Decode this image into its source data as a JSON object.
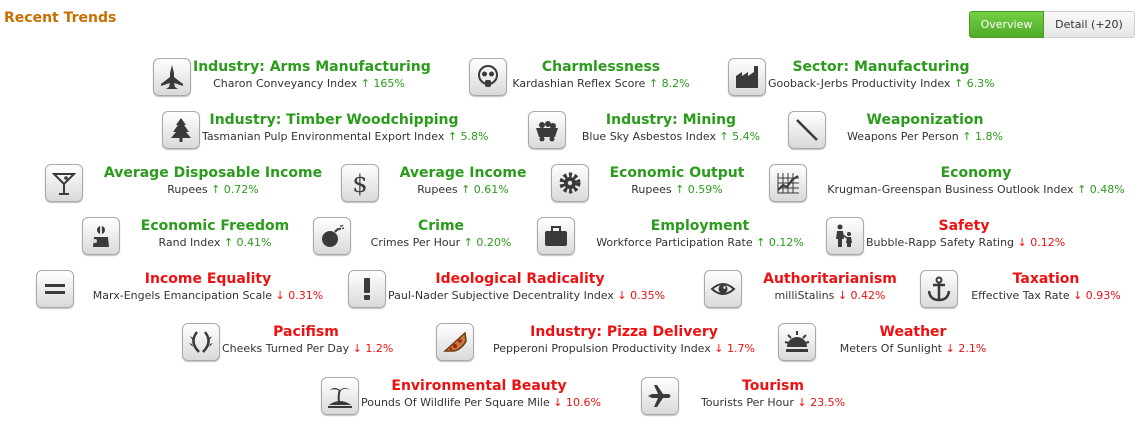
{
  "header": {
    "title": "Recent Trends"
  },
  "tabs": [
    {
      "label": "Overview",
      "active": true
    },
    {
      "label": "Detail (+20)",
      "active": false
    }
  ],
  "colors": {
    "up": "#2a9b1b",
    "down": "#ee1111",
    "title": "#c96f00",
    "active_tab": "#5cb82f"
  },
  "trends": [
    {
      "name": "Industry: Arms Manufacturing",
      "index": "Charon Conveyancy Index",
      "change": "↑ 165%",
      "direction": "up",
      "icon": "jet-icon"
    },
    {
      "name": "Charmlessness",
      "index": "Kardashian Reflex Score",
      "change": "↑ 8.2%",
      "direction": "up",
      "icon": "gas-mask-icon"
    },
    {
      "name": "Sector: Manufacturing",
      "index": "Gooback-Jerbs Productivity Index",
      "change": "↑ 6.3%",
      "direction": "up",
      "icon": "factory-icon"
    },
    {
      "name": "Industry: Timber Woodchipping",
      "index": "Tasmanian Pulp Environmental Export Index",
      "change": "↑ 5.8%",
      "direction": "up",
      "icon": "tree-icon"
    },
    {
      "name": "Industry: Mining",
      "index": "Blue Sky Asbestos Index",
      "change": "↑ 5.4%",
      "direction": "up",
      "icon": "mine-cart-icon"
    },
    {
      "name": "Weaponization",
      "index": "Weapons Per Person",
      "change": "↑ 1.8%",
      "direction": "up",
      "icon": "sword-icon"
    },
    {
      "name": "Average Disposable Income",
      "index": "Rupees",
      "change": "↑ 0.72%",
      "direction": "up",
      "icon": "cocktail-icon"
    },
    {
      "name": "Average Income",
      "index": "Rupees",
      "change": "↑ 0.61%",
      "direction": "up",
      "icon": "dollar-icon"
    },
    {
      "name": "Economic Output",
      "index": "Rupees",
      "change": "↑ 0.59%",
      "direction": "up",
      "icon": "gear-icon"
    },
    {
      "name": "Economy",
      "index": "Krugman-Greenspan Business Outlook Index",
      "change": "↑ 0.48%",
      "direction": "up",
      "icon": "line-chart-icon"
    },
    {
      "name": "Economic Freedom",
      "index": "Rand Index",
      "change": "↑ 0.41%",
      "direction": "up",
      "icon": "market-icon"
    },
    {
      "name": "Crime",
      "index": "Crimes Per Hour",
      "change": "↑ 0.20%",
      "direction": "up",
      "icon": "bomb-icon"
    },
    {
      "name": "Employment",
      "index": "Workforce Participation Rate",
      "change": "↑ 0.12%",
      "direction": "up",
      "icon": "briefcase-icon"
    },
    {
      "name": "Safety",
      "index": "Bubble-Rapp Safety Rating",
      "change": "↓ 0.12%",
      "direction": "down",
      "icon": "family-icon"
    },
    {
      "name": "Income Equality",
      "index": "Marx-Engels Emancipation Scale",
      "change": "↓ 0.31%",
      "direction": "down",
      "icon": "equals-icon"
    },
    {
      "name": "Ideological Radicality",
      "index": "Paul-Nader Subjective Decentrality Index",
      "change": "↓ 0.35%",
      "direction": "down",
      "icon": "exclamation-icon"
    },
    {
      "name": "Authoritarianism",
      "index": "milliStalins",
      "change": "↓ 0.42%",
      "direction": "down",
      "icon": "eye-icon"
    },
    {
      "name": "Taxation",
      "index": "Effective Tax Rate",
      "change": "↓ 0.93%",
      "direction": "down",
      "icon": "anchor-icon"
    },
    {
      "name": "Pacifism",
      "index": "Cheeks Turned Per Day",
      "change": "↓ 1.2%",
      "direction": "down",
      "icon": "laurel-icon"
    },
    {
      "name": "Industry: Pizza Delivery",
      "index": "Pepperoni Propulsion Productivity Index",
      "change": "↓ 1.7%",
      "direction": "down",
      "icon": "pizza-icon"
    },
    {
      "name": "Weather",
      "index": "Meters Of Sunlight",
      "change": "↓ 2.1%",
      "direction": "down",
      "icon": "sunrise-icon"
    },
    {
      "name": "Environmental Beauty",
      "index": "Pounds Of Wildlife Per Square Mile",
      "change": "↓ 10.6%",
      "direction": "down",
      "icon": "island-icon"
    },
    {
      "name": "Tourism",
      "index": "Tourists Per Hour",
      "change": "↓ 23.5%",
      "direction": "down",
      "icon": "airplane-icon"
    }
  ]
}
